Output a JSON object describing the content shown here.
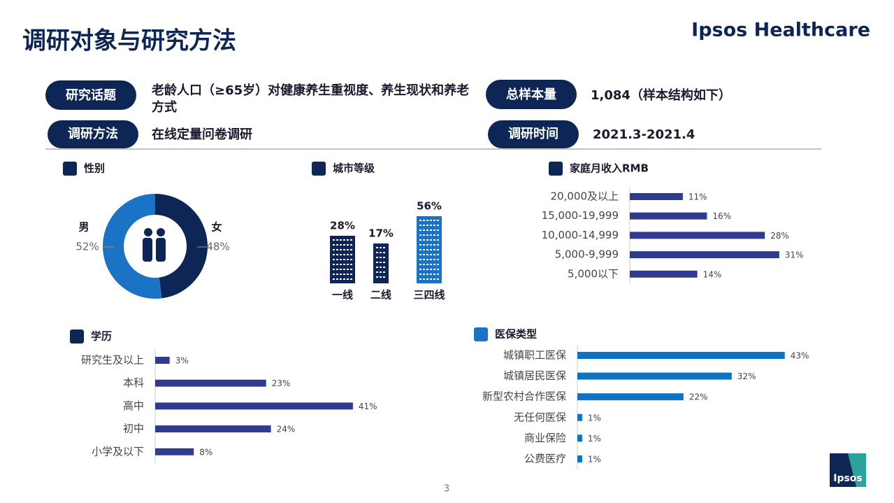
{
  "title": "调研对象与研究方法",
  "brand": "Ipsos Healthcare",
  "info": [
    {
      "label": "研究话题",
      "text": "老龄人口（≥65岁）对健康养生重视度、养生现状和养老方式"
    },
    {
      "label": "总样本量",
      "text": "1,084（样本结构如下）"
    },
    {
      "label": "调研方法",
      "text": "在线定量问卷调研"
    },
    {
      "label": "调研时间",
      "text": "2021.3-2021.4"
    }
  ],
  "chart_data": [
    {
      "type": "pie",
      "title": "性别",
      "categories": [
        "男",
        "女"
      ],
      "values": [
        52,
        48
      ],
      "value_labels": [
        "52%",
        "48%"
      ],
      "colors": [
        "#1a73c4",
        "#0d2656"
      ]
    },
    {
      "type": "pictograph",
      "title": "城市等级",
      "categories": [
        "一线",
        "二线",
        "三四线"
      ],
      "values": [
        28,
        17,
        56
      ],
      "value_labels": [
        "28%",
        "17%",
        "56%"
      ],
      "colors": [
        "#0d2656",
        "#0d2656",
        "#1a73c4"
      ]
    },
    {
      "type": "barh",
      "title": "家庭月收入RMB",
      "categories": [
        "20,000及以上",
        "15,000-19,999",
        "10,000-14,999",
        "5,000-9,999",
        "5,000以下"
      ],
      "values": [
        11,
        16,
        28,
        31,
        14
      ],
      "value_labels": [
        "11%",
        "16%",
        "28%",
        "31%",
        "14%"
      ],
      "color": "#2f3b8e"
    },
    {
      "type": "barh",
      "title": "学历",
      "categories": [
        "研究生及以上",
        "本科",
        "高中",
        "初中",
        "小学及以下"
      ],
      "values": [
        3,
        23,
        41,
        24,
        8
      ],
      "value_labels": [
        "3%",
        "23%",
        "41%",
        "24%",
        "8%"
      ],
      "color": "#2f3b8e"
    },
    {
      "type": "barh",
      "title": "医保类型",
      "categories": [
        "城镇职工医保",
        "城镇居民医保",
        "新型农村合作医保",
        "无任何医保",
        "商业保险",
        "公费医疗"
      ],
      "values": [
        43,
        32,
        22,
        1,
        1,
        1
      ],
      "value_labels": [
        "43%",
        "32%",
        "22%",
        "1%",
        "1%",
        "1%"
      ],
      "color": "#0b72c4"
    }
  ],
  "page_number": "3",
  "logo": "Ipsos"
}
